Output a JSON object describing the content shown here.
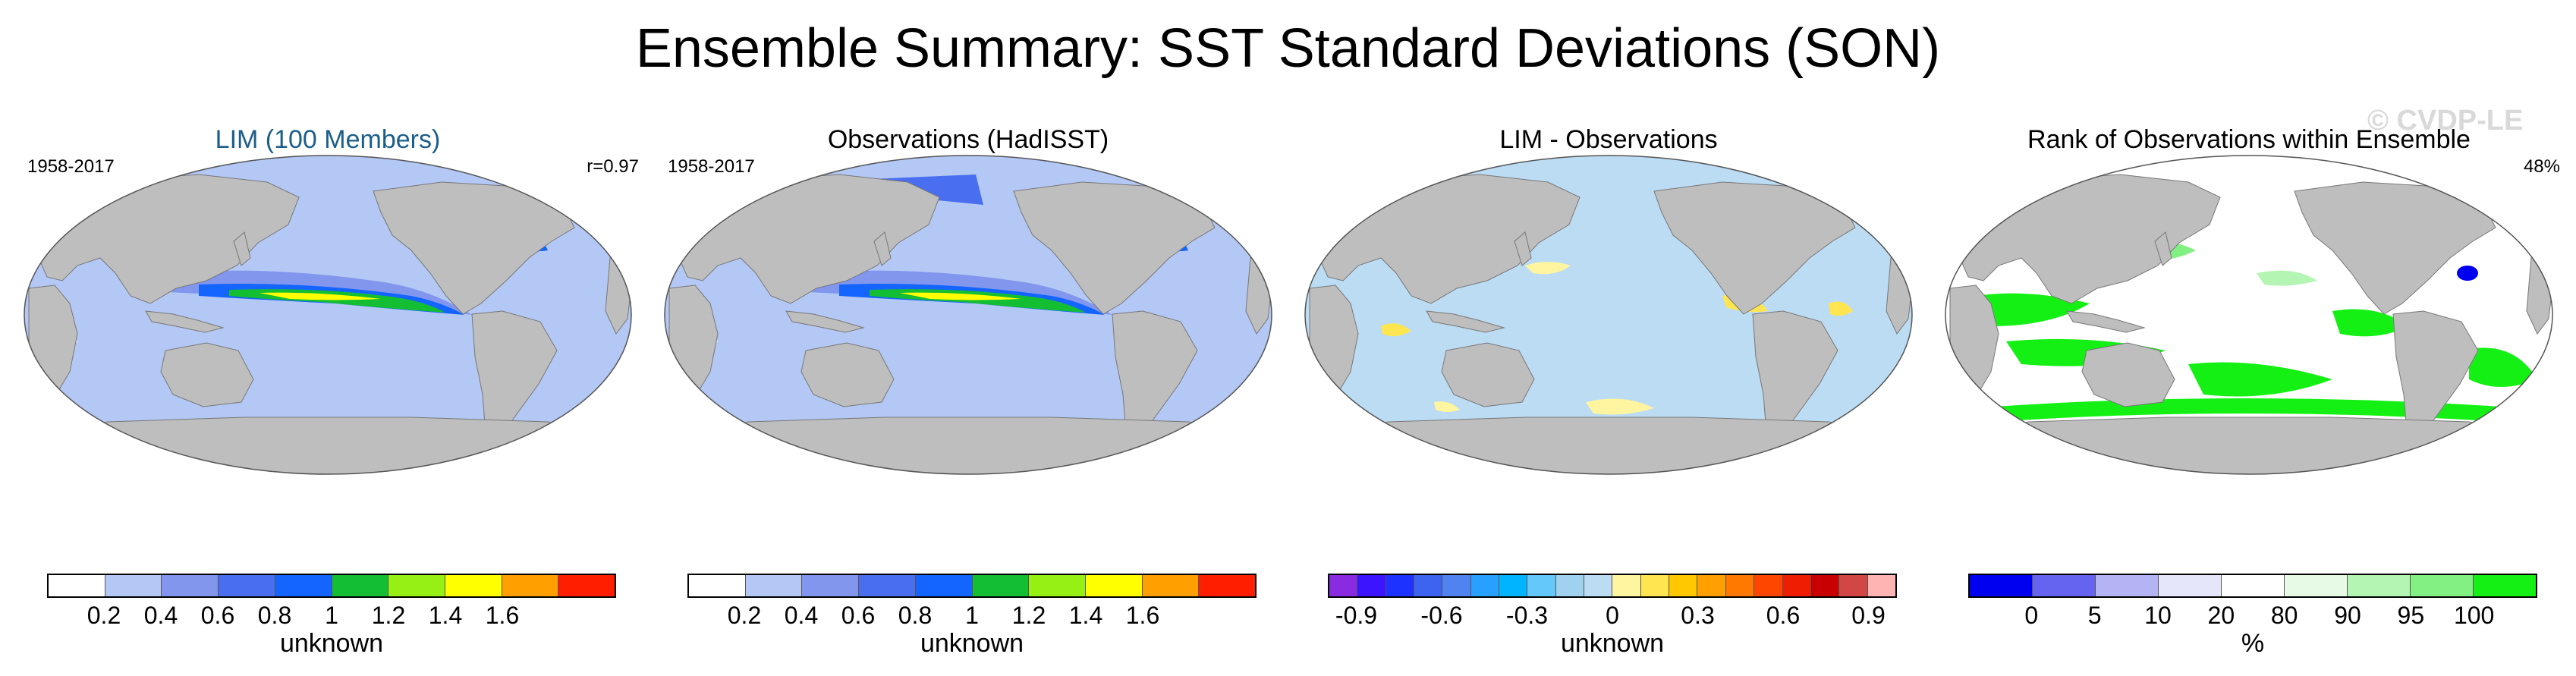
{
  "title": "Ensemble Summary: SST Standard Deviations (SON)",
  "watermark": "© CVDP-LE",
  "colors": {
    "land": "#bebebe",
    "title_blue": "#1a5e8a"
  },
  "panels": [
    {
      "title": "LIM (100 Members)",
      "title_color": "#1a5e8a",
      "left_label": "1958-2017",
      "right_label": "r=0.97",
      "field": "sst_std",
      "base_color": "#b4c8f5",
      "colorbar": {
        "colors": [
          "#ffffff",
          "#b4c8f5",
          "#8296ee",
          "#4a6ef0",
          "#1464ff",
          "#14be32",
          "#96f014",
          "#ffff00",
          "#ffa000",
          "#ff1e00"
        ],
        "ticks": [
          "0.2",
          "0.4",
          "0.6",
          "0.8",
          "1",
          "1.2",
          "1.4",
          "1.6"
        ],
        "label": "unknown"
      }
    },
    {
      "title": "Observations (HadISST)",
      "title_color": "#000000",
      "left_label": "1958-2017",
      "right_label": "",
      "field": "sst_std",
      "base_color": "#b4c8f5",
      "colorbar": {
        "colors": [
          "#ffffff",
          "#b4c8f5",
          "#8296ee",
          "#4a6ef0",
          "#1464ff",
          "#14be32",
          "#96f014",
          "#ffff00",
          "#ffa000",
          "#ff1e00"
        ],
        "ticks": [
          "0.2",
          "0.4",
          "0.6",
          "0.8",
          "1",
          "1.2",
          "1.4",
          "1.6"
        ],
        "label": "unknown"
      }
    },
    {
      "title": "LIM - Observations",
      "title_color": "#000000",
      "left_label": "",
      "right_label": "",
      "field": "difference",
      "base_color": "#bcdcf4",
      "colorbar": {
        "colors": [
          "#8a2be2",
          "#3c14ff",
          "#1e32ff",
          "#3c64f0",
          "#5082f0",
          "#28a0ff",
          "#00b4ff",
          "#64c8fa",
          "#a0d2f0",
          "#bcdcf4",
          "#fff5a0",
          "#ffe650",
          "#ffc800",
          "#ffa000",
          "#ff7800",
          "#ff4600",
          "#f01e00",
          "#c80000",
          "#d24646",
          "#ffb4b4"
        ],
        "ticks": [
          "-0.9",
          "-0.6",
          "-0.3",
          "0",
          "0.3",
          "0.6",
          "0.9"
        ],
        "label": "unknown"
      }
    },
    {
      "title": "Rank of Observations within Ensemble",
      "title_color": "#000000",
      "left_label": "",
      "right_label": "48%",
      "field": "rank",
      "base_color": "#ffffff",
      "colorbar": {
        "colors": [
          "#0000f0",
          "#6464f0",
          "#b4b4f5",
          "#e6e6fa",
          "#ffffff",
          "#e6fae6",
          "#b4f5b4",
          "#82f082",
          "#14f014"
        ],
        "ticks": [
          "0",
          "5",
          "10",
          "20",
          "80",
          "90",
          "95",
          "100"
        ],
        "label": "%"
      }
    }
  ]
}
